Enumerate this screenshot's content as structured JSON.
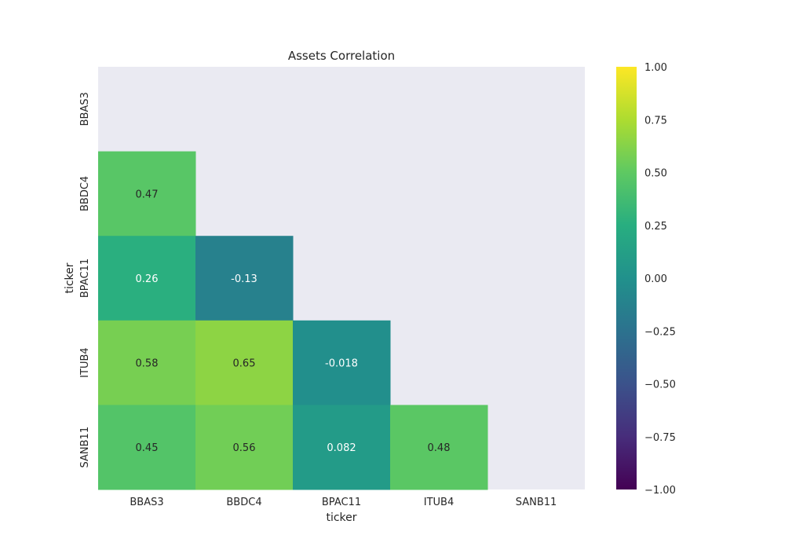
{
  "chart_data": {
    "type": "heatmap",
    "title": "Assets Correlation",
    "xlabel": "ticker",
    "ylabel": "ticker",
    "x_categories": [
      "BBAS3",
      "BBDC4",
      "BPAC11",
      "ITUB4",
      "SANB11"
    ],
    "y_categories": [
      "BBAS3",
      "BBDC4",
      "BPAC11",
      "ITUB4",
      "SANB11"
    ],
    "masked": "upper-triangle-including-diagonal",
    "cells": [
      {
        "row": 1,
        "col": 0,
        "value": 0.47,
        "label": "0.47"
      },
      {
        "row": 2,
        "col": 0,
        "value": 0.26,
        "label": "0.26"
      },
      {
        "row": 2,
        "col": 1,
        "value": -0.13,
        "label": "-0.13"
      },
      {
        "row": 3,
        "col": 0,
        "value": 0.58,
        "label": "0.58"
      },
      {
        "row": 3,
        "col": 1,
        "value": 0.65,
        "label": "0.65"
      },
      {
        "row": 3,
        "col": 2,
        "value": -0.018,
        "label": "-0.018"
      },
      {
        "row": 4,
        "col": 0,
        "value": 0.45,
        "label": "0.45"
      },
      {
        "row": 4,
        "col": 1,
        "value": 0.56,
        "label": "0.56"
      },
      {
        "row": 4,
        "col": 2,
        "value": 0.082,
        "label": "0.082"
      },
      {
        "row": 4,
        "col": 3,
        "value": 0.48,
        "label": "0.48"
      }
    ],
    "colormap": "viridis",
    "vmin": -1.0,
    "vmax": 1.0,
    "colorbar_ticks": [
      {
        "value": 1.0,
        "label": "1.00"
      },
      {
        "value": 0.75,
        "label": "0.75"
      },
      {
        "value": 0.5,
        "label": "0.50"
      },
      {
        "value": 0.25,
        "label": "0.25"
      },
      {
        "value": 0.0,
        "label": "0.00"
      },
      {
        "value": -0.25,
        "label": "−0.25"
      },
      {
        "value": -0.5,
        "label": "−0.50"
      },
      {
        "value": -0.75,
        "label": "−0.75"
      },
      {
        "value": -1.0,
        "label": "−1.00"
      }
    ],
    "background_color": "#eaeaf2",
    "grid": false
  }
}
